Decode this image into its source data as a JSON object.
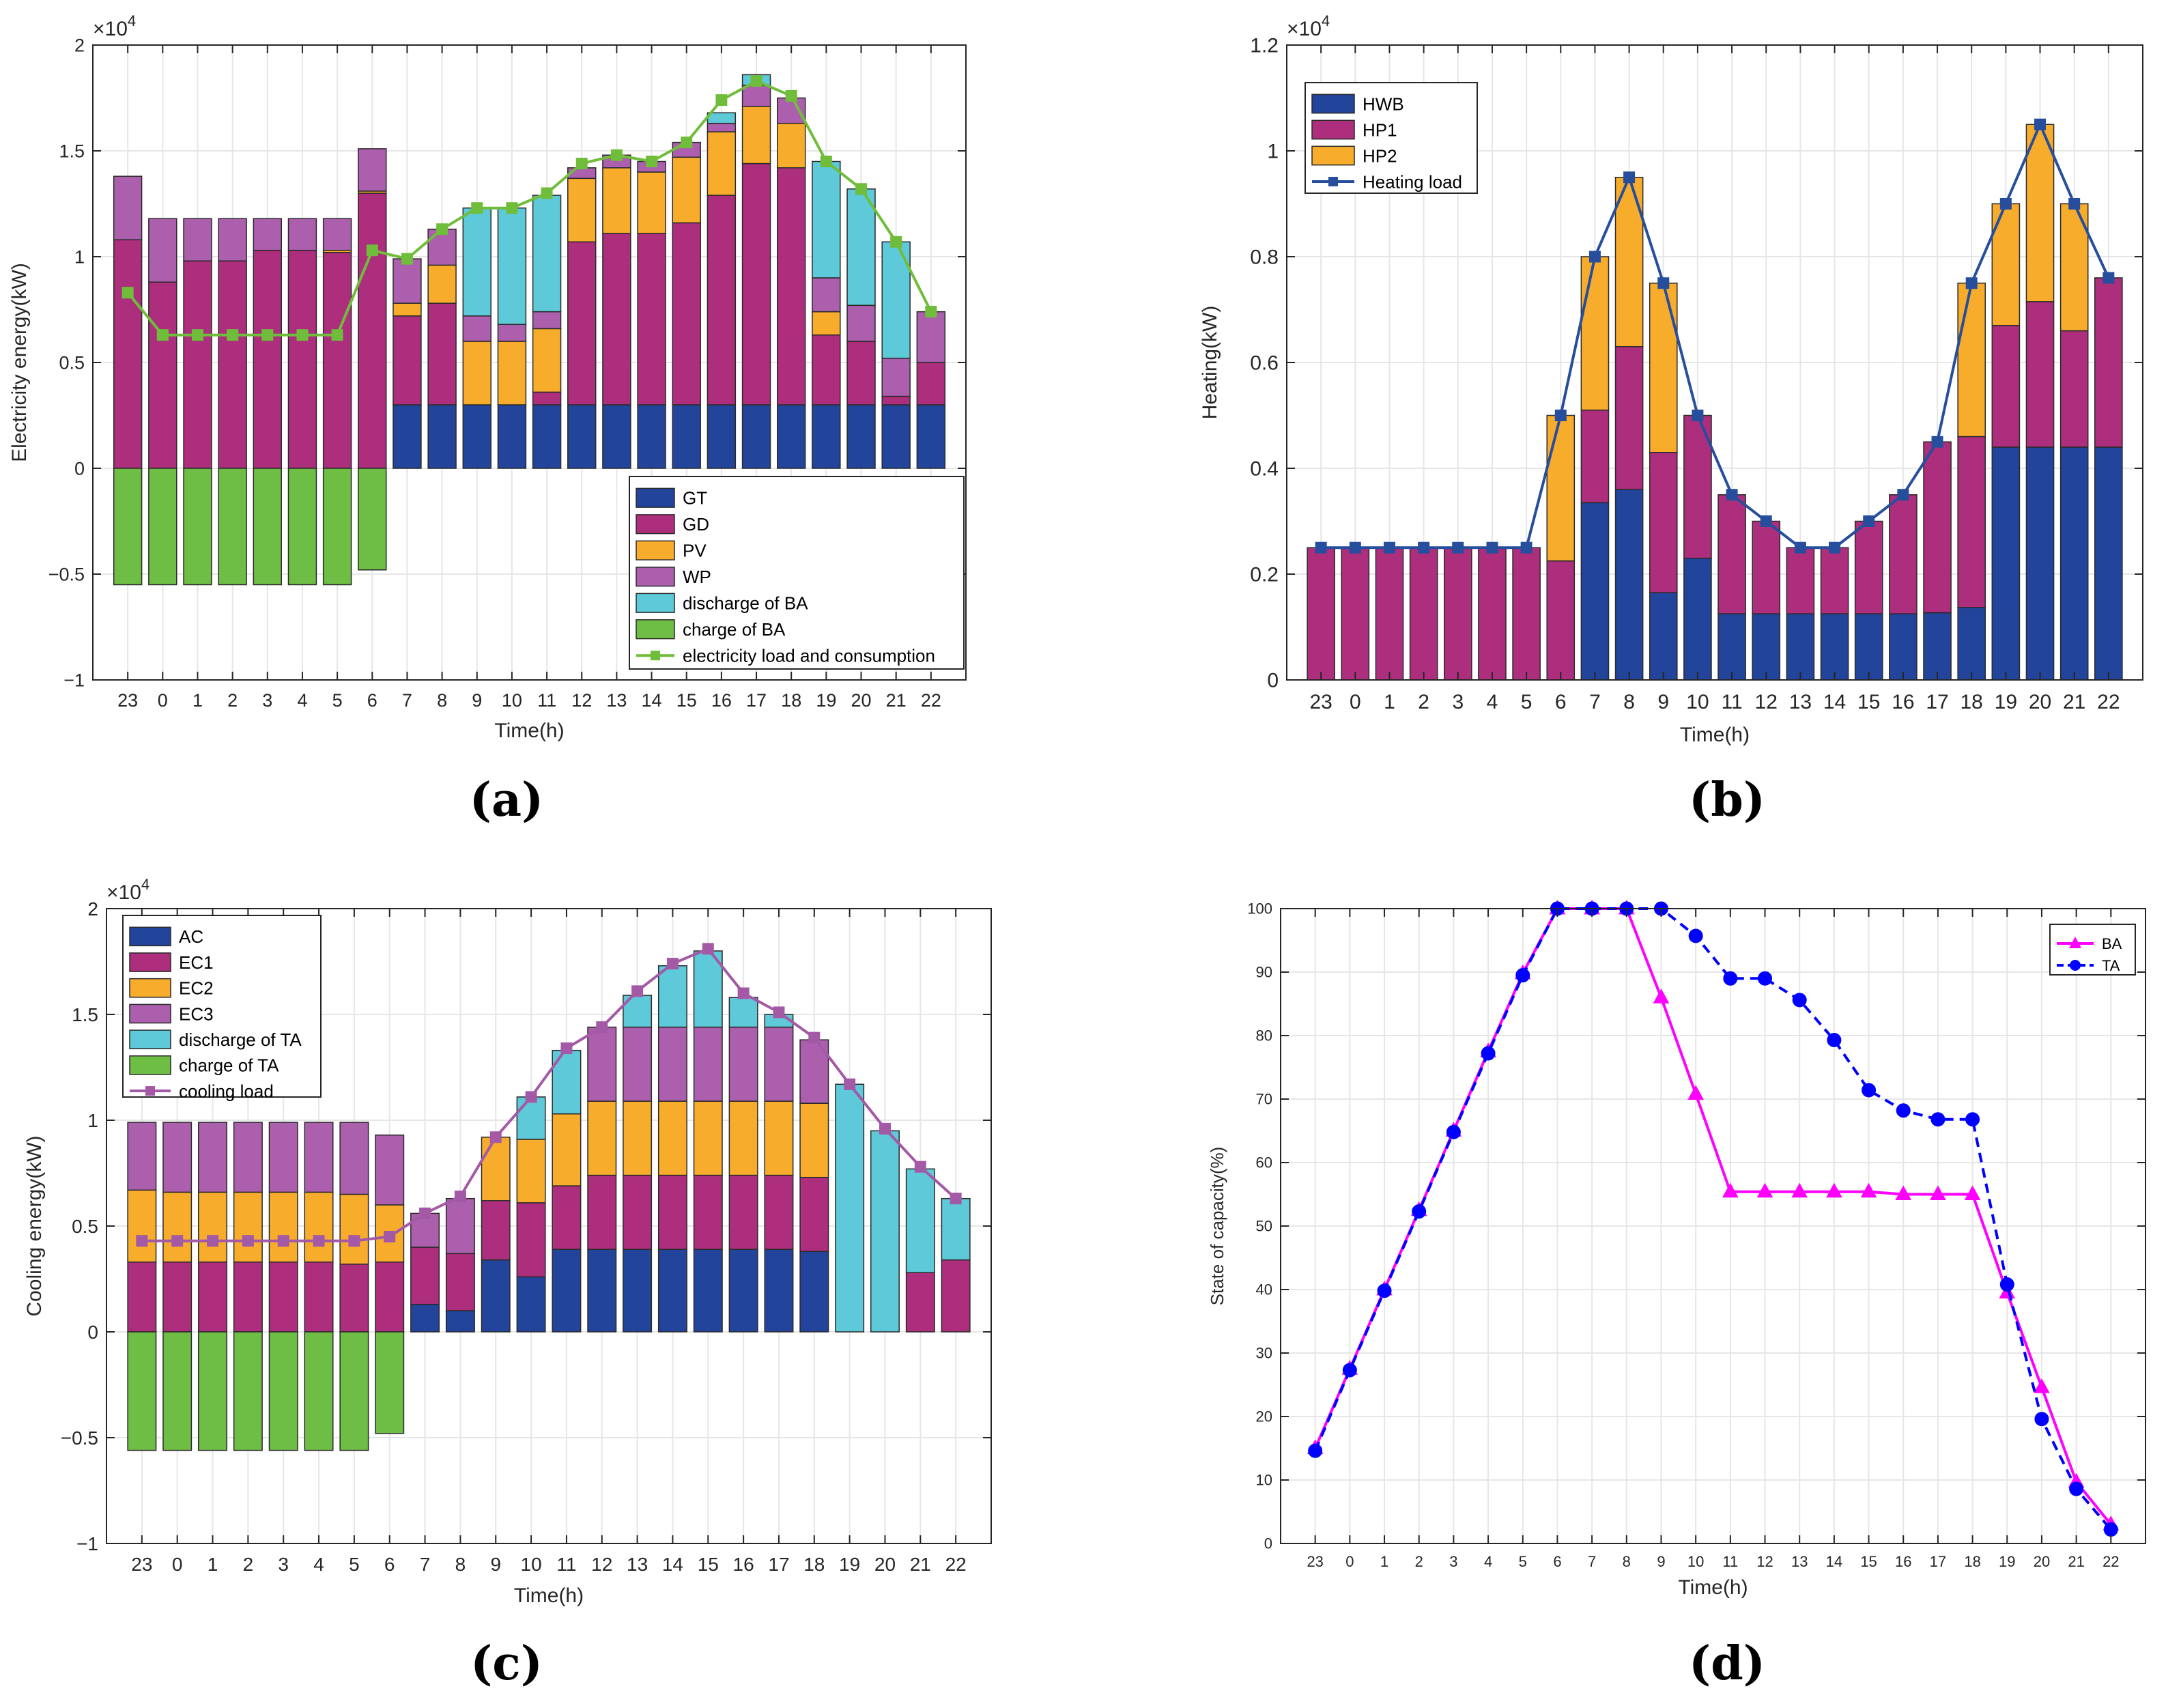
{
  "panels": {
    "a": {
      "label": "(a)"
    },
    "b": {
      "label": "(b)"
    },
    "c": {
      "label": "(c)"
    },
    "d": {
      "label": "(d)"
    }
  },
  "colors": {
    "GT": "#22449b",
    "GD": "#ac2e7c",
    "PV": "#f8ac2c",
    "WP": "#ab5fac",
    "dischargeBA": "#5ec9d8",
    "chargeBA": "#6ebd44",
    "elecLoad": "#6fbd3b",
    "HWB": "#22449b",
    "HP1": "#ac2e7c",
    "HP2": "#f8ac2c",
    "heatLoad": "#264e9c",
    "AC": "#22449b",
    "EC1": "#ac2e7c",
    "EC2": "#f8ac2c",
    "EC3": "#ab5fac",
    "dischargeTA": "#5ec9d8",
    "chargeTA": "#6ebd44",
    "coolLoad": "#a459a6",
    "BA": "#ff00ff",
    "TA": "#0000ff"
  },
  "chart_data": [
    {
      "id": "a",
      "type": "bar",
      "stacked": true,
      "title": "",
      "xlabel": "Time(h)",
      "ylabel": "Electricity energy(kW)",
      "exponent_label": "×10",
      "exponent_power": "4",
      "ylim": [
        -1,
        2
      ],
      "yticks": [
        -1,
        -0.5,
        0,
        0.5,
        1,
        1.5,
        2
      ],
      "ytick_labels": [
        "−1",
        "−0.5",
        "0",
        "0.5",
        "1",
        "1.5",
        "2"
      ],
      "grid": true,
      "legend_position": "bottom-right",
      "categories": [
        "23",
        "0",
        "1",
        "2",
        "3",
        "4",
        "5",
        "6",
        "7",
        "8",
        "9",
        "10",
        "11",
        "12",
        "13",
        "14",
        "15",
        "16",
        "17",
        "18",
        "19",
        "20",
        "21",
        "22"
      ],
      "series": [
        {
          "name": "GT",
          "color_key": "GT",
          "values": [
            0,
            0,
            0,
            0,
            0,
            0,
            0,
            0,
            0.3,
            0.3,
            0.3,
            0.3,
            0.3,
            0.3,
            0.3,
            0.3,
            0.3,
            0.3,
            0.3,
            0.3,
            0.3,
            0.3,
            0.3,
            0.3
          ]
        },
        {
          "name": "GD",
          "color_key": "GD",
          "values": [
            1.08,
            0.88,
            0.98,
            0.98,
            1.03,
            1.03,
            1.02,
            1.3,
            0.42,
            0.48,
            0,
            0,
            0.06,
            0.77,
            0.81,
            0.81,
            0.86,
            0.99,
            1.14,
            1.12,
            0.33,
            0.3,
            0.04,
            0.2
          ]
        },
        {
          "name": "PV",
          "color_key": "PV",
          "values": [
            0,
            0,
            0,
            0,
            0,
            0,
            0.01,
            0.01,
            0.06,
            0.18,
            0.3,
            0.3,
            0.3,
            0.3,
            0.31,
            0.29,
            0.31,
            0.3,
            0.27,
            0.21,
            0.11,
            0,
            0,
            0
          ]
        },
        {
          "name": "WP",
          "color_key": "WP",
          "values": [
            0.3,
            0.3,
            0.2,
            0.2,
            0.15,
            0.15,
            0.15,
            0.2,
            0.21,
            0.17,
            0.12,
            0.08,
            0.08,
            0.05,
            0.06,
            0.05,
            0.07,
            0.04,
            0.1,
            0.12,
            0.16,
            0.17,
            0.18,
            0.24
          ]
        },
        {
          "name": "discharge of BA",
          "color_key": "dischargeBA",
          "values": [
            0,
            0,
            0,
            0,
            0,
            0,
            0,
            0,
            0,
            0,
            0.51,
            0.55,
            0.55,
            0,
            0,
            0,
            0,
            0.05,
            0.05,
            0,
            0.55,
            0.55,
            0.55,
            0.0
          ]
        },
        {
          "name": "charge of BA",
          "color_key": "chargeBA",
          "values": [
            -0.55,
            -0.55,
            -0.55,
            -0.55,
            -0.55,
            -0.55,
            -0.55,
            -0.48,
            0,
            0,
            0,
            0,
            0,
            0,
            0,
            0,
            0,
            0,
            0,
            0,
            0,
            0,
            0,
            0
          ]
        }
      ],
      "line": {
        "name": "electricity load and consumption",
        "color_key": "elecLoad",
        "values": [
          0.83,
          0.63,
          0.63,
          0.63,
          0.63,
          0.63,
          0.63,
          1.03,
          0.99,
          1.13,
          1.23,
          1.23,
          1.3,
          1.44,
          1.48,
          1.45,
          1.54,
          1.74,
          1.83,
          1.76,
          1.45,
          1.32,
          1.07,
          0.74
        ]
      }
    },
    {
      "id": "b",
      "type": "bar",
      "stacked": true,
      "title": "",
      "xlabel": "Time(h)",
      "ylabel": "Heating(kW)",
      "exponent_label": "×10",
      "exponent_power": "4",
      "ylim": [
        0,
        1.2
      ],
      "yticks": [
        0,
        0.2,
        0.4,
        0.6,
        0.8,
        1,
        1.2
      ],
      "ytick_labels": [
        "0",
        "0.2",
        "0.4",
        "0.6",
        "0.8",
        "1",
        "1.2"
      ],
      "grid": true,
      "legend_position": "top-left",
      "categories": [
        "23",
        "0",
        "1",
        "2",
        "3",
        "4",
        "5",
        "6",
        "7",
        "8",
        "9",
        "10",
        "11",
        "12",
        "13",
        "14",
        "15",
        "16",
        "17",
        "18",
        "19",
        "20",
        "21",
        "22"
      ],
      "series": [
        {
          "name": "HWB",
          "color_key": "HWB",
          "values": [
            0,
            0,
            0,
            0,
            0,
            0,
            0,
            0,
            0.335,
            0.36,
            0.165,
            0.23,
            0.125,
            0.125,
            0.125,
            0.125,
            0.125,
            0.125,
            0.127,
            0.137,
            0.44,
            0.44,
            0.44,
            0.44
          ]
        },
        {
          "name": "HP1",
          "color_key": "HP1",
          "values": [
            0.25,
            0.25,
            0.25,
            0.25,
            0.25,
            0.25,
            0.25,
            0.225,
            0.175,
            0.27,
            0.265,
            0.27,
            0.225,
            0.175,
            0.125,
            0.125,
            0.175,
            0.225,
            0.323,
            0.323,
            0.23,
            0.275,
            0.22,
            0.32
          ]
        },
        {
          "name": "HP2",
          "color_key": "HP2",
          "values": [
            0,
            0,
            0,
            0,
            0,
            0,
            0,
            0.275,
            0.29,
            0.32,
            0.32,
            0,
            0,
            0,
            0,
            0,
            0,
            0,
            0,
            0.29,
            0.23,
            0.335,
            0.24,
            0
          ]
        }
      ],
      "line": {
        "name": "Heating load",
        "color_key": "heatLoad",
        "values": [
          0.25,
          0.25,
          0.25,
          0.25,
          0.25,
          0.25,
          0.25,
          0.5,
          0.8,
          0.95,
          0.75,
          0.5,
          0.35,
          0.3,
          0.25,
          0.25,
          0.3,
          0.35,
          0.45,
          0.75,
          0.9,
          1.05,
          0.9,
          0.76
        ]
      }
    },
    {
      "id": "c",
      "type": "bar",
      "stacked": true,
      "title": "",
      "xlabel": "Time(h)",
      "ylabel": "Cooling energy(kW)",
      "exponent_label": "×10",
      "exponent_power": "4",
      "ylim": [
        -1,
        2
      ],
      "yticks": [
        -1,
        -0.5,
        0,
        0.5,
        1,
        1.5,
        2
      ],
      "ytick_labels": [
        "−1",
        "−0.5",
        "0",
        "0.5",
        "1",
        "1.5",
        "2"
      ],
      "grid": true,
      "legend_position": "top-left",
      "categories": [
        "23",
        "0",
        "1",
        "2",
        "3",
        "4",
        "5",
        "6",
        "7",
        "8",
        "9",
        "10",
        "11",
        "12",
        "13",
        "14",
        "15",
        "16",
        "17",
        "18",
        "19",
        "20",
        "21",
        "22"
      ],
      "series": [
        {
          "name": "AC",
          "color_key": "AC",
          "values": [
            0,
            0,
            0,
            0,
            0,
            0,
            0,
            0,
            0.13,
            0.1,
            0.34,
            0.26,
            0.39,
            0.39,
            0.39,
            0.39,
            0.39,
            0.39,
            0.39,
            0.38,
            0,
            0,
            0,
            0
          ]
        },
        {
          "name": "EC1",
          "color_key": "EC1",
          "values": [
            0.33,
            0.33,
            0.33,
            0.33,
            0.33,
            0.33,
            0.32,
            0.33,
            0.27,
            0.27,
            0.28,
            0.35,
            0.3,
            0.35,
            0.35,
            0.35,
            0.35,
            0.35,
            0.35,
            0.35,
            0,
            0,
            0.28,
            0.34
          ]
        },
        {
          "name": "EC2",
          "color_key": "EC2",
          "values": [
            0.34,
            0.33,
            0.33,
            0.33,
            0.33,
            0.33,
            0.33,
            0.27,
            0,
            0,
            0.3,
            0.3,
            0.34,
            0.35,
            0.35,
            0.35,
            0.35,
            0.35,
            0.35,
            0.35,
            0,
            0,
            0,
            0
          ]
        },
        {
          "name": "EC3",
          "color_key": "EC3",
          "values": [
            0.32,
            0.33,
            0.33,
            0.33,
            0.33,
            0.33,
            0.34,
            0.33,
            0.16,
            0.26,
            0,
            0,
            0,
            0.35,
            0.35,
            0.35,
            0.35,
            0.35,
            0.35,
            0.3,
            0,
            0,
            0,
            0
          ]
        },
        {
          "name": "discharge of TA",
          "color_key": "dischargeTA",
          "values": [
            0,
            0,
            0,
            0,
            0,
            0,
            0,
            0,
            0,
            0,
            0,
            0.2,
            0.3,
            0,
            0.15,
            0.29,
            0.36,
            0.14,
            0.06,
            0,
            1.17,
            0.95,
            0.49,
            0.29
          ]
        },
        {
          "name": "charge of TA",
          "color_key": "chargeTA",
          "values": [
            -0.56,
            -0.56,
            -0.56,
            -0.56,
            -0.56,
            -0.56,
            -0.56,
            -0.48,
            0,
            0,
            0,
            0,
            0,
            0,
            0,
            0,
            0,
            0,
            0,
            0,
            0,
            0,
            0,
            0
          ]
        }
      ],
      "line": {
        "name": "cooling load",
        "color_key": "coolLoad",
        "values": [
          0.43,
          0.43,
          0.43,
          0.43,
          0.43,
          0.43,
          0.43,
          0.45,
          0.56,
          0.64,
          0.92,
          1.11,
          1.34,
          1.44,
          1.61,
          1.74,
          1.81,
          1.6,
          1.51,
          1.39,
          1.17,
          0.96,
          0.78,
          0.63
        ]
      }
    },
    {
      "id": "d",
      "type": "line",
      "title": "",
      "xlabel": "Time(h)",
      "ylabel": "State of capacity(%)",
      "ylim": [
        0,
        100
      ],
      "yticks": [
        0,
        10,
        20,
        30,
        40,
        50,
        60,
        70,
        80,
        90,
        100
      ],
      "ytick_labels": [
        "0",
        "10",
        "20",
        "30",
        "40",
        "50",
        "60",
        "70",
        "80",
        "90",
        "100"
      ],
      "grid": true,
      "legend_position": "top-right",
      "categories": [
        "23",
        "0",
        "1",
        "2",
        "3",
        "4",
        "5",
        "6",
        "7",
        "8",
        "9",
        "10",
        "11",
        "12",
        "13",
        "14",
        "15",
        "16",
        "17",
        "18",
        "19",
        "20",
        "21",
        "22"
      ],
      "series": [
        {
          "name": "BA",
          "color_key": "BA",
          "marker": "triangle",
          "dash": false,
          "values": [
            15,
            27.5,
            40,
            52.5,
            65,
            77.5,
            89.8,
            100,
            100,
            100,
            86,
            70.8,
            55.4,
            55.4,
            55.4,
            55.4,
            55.4,
            55,
            55,
            55,
            39.5,
            24.6,
            9.7,
            3
          ]
        },
        {
          "name": "TA",
          "color_key": "TA",
          "marker": "circle",
          "dash": true,
          "values": [
            14.6,
            27.3,
            39.8,
            52.3,
            64.8,
            77.2,
            89.5,
            100,
            100,
            100,
            100,
            95.7,
            89,
            89,
            85.6,
            79.3,
            71.4,
            68.2,
            66.8,
            66.8,
            40.8,
            19.6,
            8.6,
            2.2
          ]
        }
      ]
    }
  ]
}
